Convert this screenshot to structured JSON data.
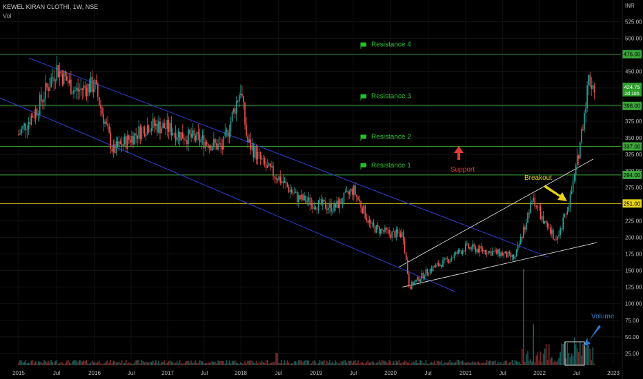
{
  "header": {
    "symbol_line": "KEWEL KIRAN CLOTHI, 1W, NSE",
    "volume_label": "Vol"
  },
  "chart_data": {
    "type": "candlestick",
    "x_axis": {
      "labels": [
        "2015",
        "Jul",
        "2016",
        "Jul",
        "2017",
        "Jul",
        "2018",
        "Jul",
        "2019",
        "Jul",
        "2020",
        "Jul",
        "2021",
        "Jul",
        "2022",
        "Jul",
        "2023"
      ]
    },
    "y_axis": {
      "unit": "INR",
      "range": [
        0,
        550
      ],
      "ticks": [
        25,
        50,
        75,
        100,
        125,
        150,
        175,
        200,
        225,
        250,
        275,
        300,
        325,
        350,
        375,
        400,
        425,
        450,
        475,
        500,
        525
      ]
    },
    "price_path": [
      {
        "t": "2015",
        "v": 355
      },
      {
        "t": "2015-04",
        "v": 395
      },
      {
        "t": "2015-07",
        "v": 455
      },
      {
        "t": "2015-10",
        "v": 420
      },
      {
        "t": "2016",
        "v": 430
      },
      {
        "t": "2016-04",
        "v": 330
      },
      {
        "t": "2016-07",
        "v": 350
      },
      {
        "t": "2016-10",
        "v": 370
      },
      {
        "t": "2017",
        "v": 365
      },
      {
        "t": "2017-03",
        "v": 355
      },
      {
        "t": "2017-07",
        "v": 345
      },
      {
        "t": "2017-10",
        "v": 335
      },
      {
        "t": "2017-12",
        "v": 395
      },
      {
        "t": "2018",
        "v": 425
      },
      {
        "t": "2018-02",
        "v": 345
      },
      {
        "t": "2018-05",
        "v": 305
      },
      {
        "t": "2018-07",
        "v": 290
      },
      {
        "t": "2018-10",
        "v": 260
      },
      {
        "t": "2019",
        "v": 250
      },
      {
        "t": "2019-04",
        "v": 245
      },
      {
        "t": "2019-07",
        "v": 272
      },
      {
        "t": "2019-10",
        "v": 215
      },
      {
        "t": "2020",
        "v": 205
      },
      {
        "t": "2020-03",
        "v": 205
      },
      {
        "t": "2020-04",
        "v": 125
      },
      {
        "t": "2020-07",
        "v": 150
      },
      {
        "t": "2020-10",
        "v": 165
      },
      {
        "t": "2021",
        "v": 185
      },
      {
        "t": "2021-04",
        "v": 180
      },
      {
        "t": "2021-07",
        "v": 175
      },
      {
        "t": "2021-09",
        "v": 168
      },
      {
        "t": "2021-12",
        "v": 260
      },
      {
        "t": "2022-02",
        "v": 215
      },
      {
        "t": "2022-04",
        "v": 195
      },
      {
        "t": "2022-06",
        "v": 260
      },
      {
        "t": "2022-07",
        "v": 305
      },
      {
        "t": "2022-08",
        "v": 370
      },
      {
        "t": "2022-09",
        "v": 440
      },
      {
        "t": "2022-10",
        "v": 425
      }
    ],
    "last_price": {
      "value": "424.75",
      "countdown": "2d 16h"
    },
    "levels": [
      {
        "price": 476,
        "label": "476.00",
        "annotation": "Resistance 4",
        "color": "#3aa83a"
      },
      {
        "price": 398,
        "label": "398.00",
        "annotation": "Resistance 3",
        "color": "#3aa83a"
      },
      {
        "price": 337,
        "label": "337.00",
        "annotation": "Resistance 2",
        "color": "#3aa83a"
      },
      {
        "price": 294,
        "label": "294.00",
        "annotation": "Resistance 1",
        "color": "#3aa83a"
      },
      {
        "price": 251,
        "label": "251.00",
        "annotation": "",
        "color": "#e6d21a"
      }
    ],
    "annotations": {
      "support": "Support",
      "breakout": "Breakout",
      "volume": "Volume"
    },
    "colors": {
      "up": "#26a69a",
      "down": "#ef5350",
      "channel": "#2d3fd6",
      "wedge": "#d8d8d8",
      "support_text": "#e53935",
      "breakout_text": "#e6d21a",
      "volume_text": "#2f7bd6"
    }
  }
}
